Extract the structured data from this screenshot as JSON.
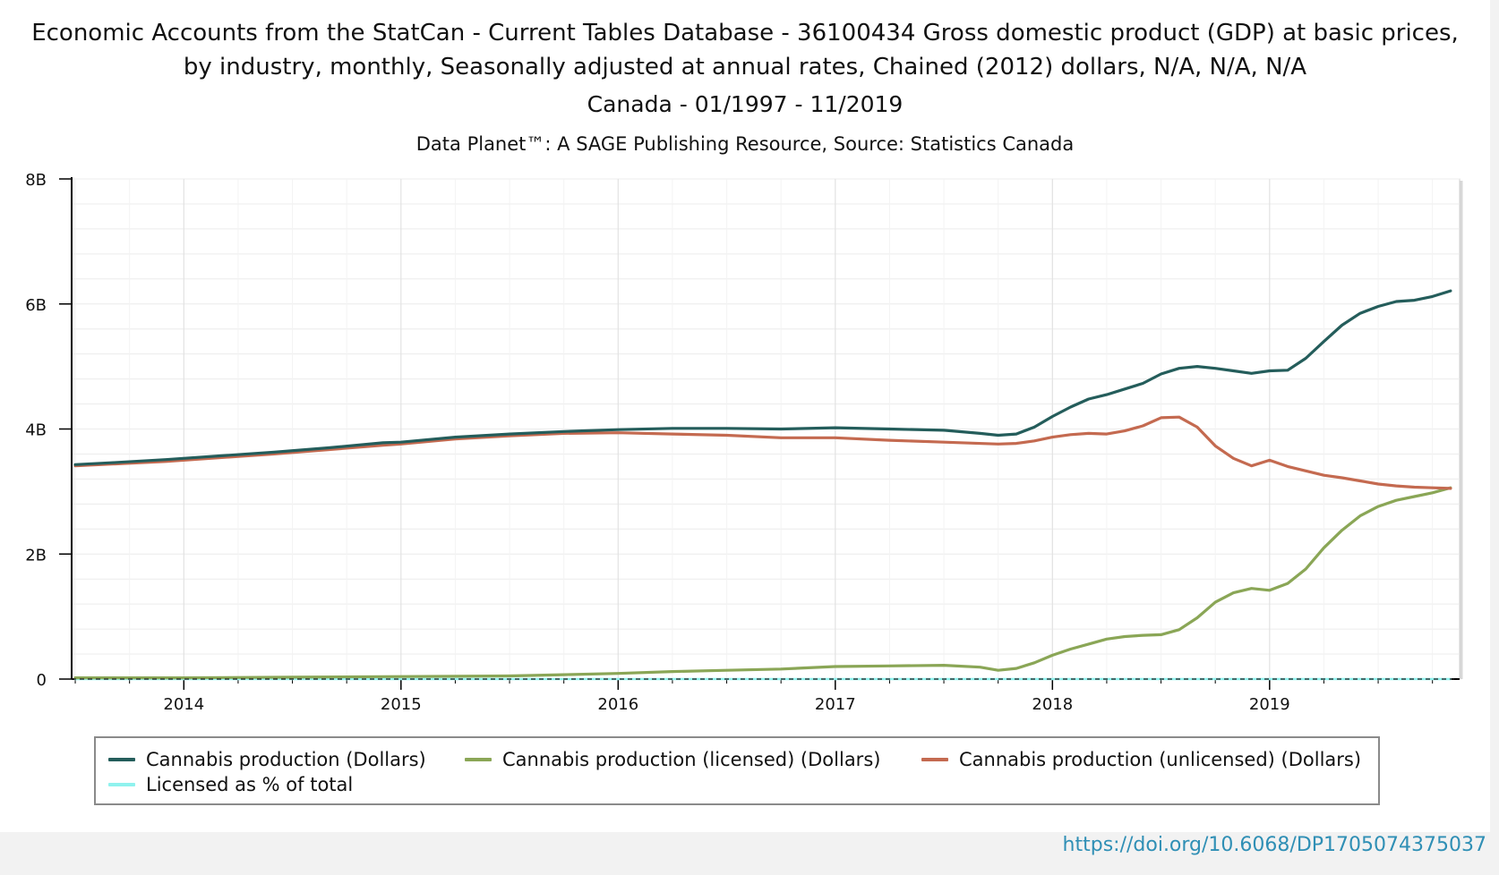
{
  "title_line1": "Economic Accounts from the StatCan - Current Tables Database - 36100434 Gross domestic product (GDP) at basic prices,",
  "title_line2": "by industry, monthly, Seasonally adjusted at annual rates, Chained (2012) dollars, N/A, N/A, N/A",
  "subtitle": "Canada - 01/1997 - 11/2019",
  "source": "Data Planet™: A SAGE Publishing Resource, Source: Statistics Canada",
  "doi_link": "https://doi.org/10.6068/DP1705074375037",
  "chart_data": {
    "type": "line",
    "x_start": "2013-07",
    "x_end": "2019-11",
    "x_tick_labels": [
      "2014",
      "2015",
      "2016",
      "2017",
      "2018",
      "2019"
    ],
    "y_tick_labels": [
      "0",
      "2B",
      "4B",
      "6B",
      "8B"
    ],
    "y_tick_values": [
      0,
      2,
      4,
      6,
      8
    ],
    "ylim": [
      0,
      8
    ],
    "y_unit": "billions of dollars",
    "grid": true,
    "legend_position": "bottom",
    "series": [
      {
        "name": "Cannabis production (Dollars)",
        "color": "#245d5b",
        "points": [
          [
            "2013-07",
            3.43
          ],
          [
            "2013-09",
            3.46
          ],
          [
            "2013-12",
            3.51
          ],
          [
            "2014-03",
            3.57
          ],
          [
            "2014-06",
            3.63
          ],
          [
            "2014-09",
            3.7
          ],
          [
            "2014-12",
            3.78
          ],
          [
            "2015-01",
            3.79
          ],
          [
            "2015-04",
            3.87
          ],
          [
            "2015-07",
            3.92
          ],
          [
            "2015-10",
            3.96
          ],
          [
            "2016-01",
            3.99
          ],
          [
            "2016-04",
            4.01
          ],
          [
            "2016-07",
            4.01
          ],
          [
            "2016-10",
            4.0
          ],
          [
            "2017-01",
            4.02
          ],
          [
            "2017-04",
            4.0
          ],
          [
            "2017-07",
            3.98
          ],
          [
            "2017-09",
            3.93
          ],
          [
            "2017-10",
            3.9
          ],
          [
            "2017-11",
            3.92
          ],
          [
            "2017-12",
            4.03
          ],
          [
            "2018-01",
            4.2
          ],
          [
            "2018-02",
            4.35
          ],
          [
            "2018-03",
            4.48
          ],
          [
            "2018-04",
            4.55
          ],
          [
            "2018-05",
            4.64
          ],
          [
            "2018-06",
            4.73
          ],
          [
            "2018-07",
            4.88
          ],
          [
            "2018-08",
            4.97
          ],
          [
            "2018-09",
            5.0
          ],
          [
            "2018-10",
            4.97
          ],
          [
            "2018-11",
            4.93
          ],
          [
            "2018-12",
            4.89
          ],
          [
            "2019-01",
            4.93
          ],
          [
            "2019-02",
            4.94
          ],
          [
            "2019-03",
            5.13
          ],
          [
            "2019-04",
            5.4
          ],
          [
            "2019-05",
            5.66
          ],
          [
            "2019-06",
            5.85
          ],
          [
            "2019-07",
            5.96
          ],
          [
            "2019-08",
            6.04
          ],
          [
            "2019-09",
            6.06
          ],
          [
            "2019-10",
            6.12
          ],
          [
            "2019-11",
            6.21
          ]
        ]
      },
      {
        "name": "Cannabis production (licensed) (Dollars)",
        "color": "#8aa656",
        "points": [
          [
            "2013-07",
            0.02
          ],
          [
            "2014-01",
            0.02
          ],
          [
            "2014-07",
            0.03
          ],
          [
            "2015-01",
            0.04
          ],
          [
            "2015-07",
            0.05
          ],
          [
            "2015-10",
            0.07
          ],
          [
            "2016-01",
            0.09
          ],
          [
            "2016-04",
            0.12
          ],
          [
            "2016-07",
            0.14
          ],
          [
            "2016-10",
            0.16
          ],
          [
            "2017-01",
            0.2
          ],
          [
            "2017-04",
            0.21
          ],
          [
            "2017-07",
            0.22
          ],
          [
            "2017-09",
            0.19
          ],
          [
            "2017-10",
            0.14
          ],
          [
            "2017-11",
            0.17
          ],
          [
            "2017-12",
            0.26
          ],
          [
            "2018-01",
            0.38
          ],
          [
            "2018-02",
            0.48
          ],
          [
            "2018-03",
            0.56
          ],
          [
            "2018-04",
            0.64
          ],
          [
            "2018-05",
            0.68
          ],
          [
            "2018-06",
            0.7
          ],
          [
            "2018-07",
            0.71
          ],
          [
            "2018-08",
            0.79
          ],
          [
            "2018-09",
            0.98
          ],
          [
            "2018-10",
            1.23
          ],
          [
            "2018-11",
            1.38
          ],
          [
            "2018-12",
            1.45
          ],
          [
            "2019-01",
            1.42
          ],
          [
            "2019-02",
            1.53
          ],
          [
            "2019-03",
            1.76
          ],
          [
            "2019-04",
            2.1
          ],
          [
            "2019-05",
            2.38
          ],
          [
            "2019-06",
            2.61
          ],
          [
            "2019-07",
            2.76
          ],
          [
            "2019-08",
            2.86
          ],
          [
            "2019-09",
            2.92
          ],
          [
            "2019-10",
            2.98
          ],
          [
            "2019-11",
            3.06
          ]
        ]
      },
      {
        "name": "Cannabis production (unlicensed) (Dollars)",
        "color": "#c46a50",
        "points": [
          [
            "2013-07",
            3.41
          ],
          [
            "2013-12",
            3.48
          ],
          [
            "2014-06",
            3.6
          ],
          [
            "2014-12",
            3.74
          ],
          [
            "2015-01",
            3.76
          ],
          [
            "2015-04",
            3.84
          ],
          [
            "2015-07",
            3.89
          ],
          [
            "2015-10",
            3.93
          ],
          [
            "2016-01",
            3.94
          ],
          [
            "2016-04",
            3.92
          ],
          [
            "2016-07",
            3.9
          ],
          [
            "2016-10",
            3.86
          ],
          [
            "2017-01",
            3.86
          ],
          [
            "2017-04",
            3.82
          ],
          [
            "2017-07",
            3.79
          ],
          [
            "2017-10",
            3.76
          ],
          [
            "2017-11",
            3.77
          ],
          [
            "2017-12",
            3.81
          ],
          [
            "2018-01",
            3.87
          ],
          [
            "2018-02",
            3.91
          ],
          [
            "2018-03",
            3.93
          ],
          [
            "2018-04",
            3.92
          ],
          [
            "2018-05",
            3.97
          ],
          [
            "2018-06",
            4.05
          ],
          [
            "2018-07",
            4.18
          ],
          [
            "2018-08",
            4.19
          ],
          [
            "2018-09",
            4.03
          ],
          [
            "2018-10",
            3.73
          ],
          [
            "2018-11",
            3.53
          ],
          [
            "2018-12",
            3.41
          ],
          [
            "2019-01",
            3.5
          ],
          [
            "2019-02",
            3.4
          ],
          [
            "2019-03",
            3.33
          ],
          [
            "2019-04",
            3.26
          ],
          [
            "2019-05",
            3.22
          ],
          [
            "2019-06",
            3.17
          ],
          [
            "2019-07",
            3.12
          ],
          [
            "2019-08",
            3.09
          ],
          [
            "2019-09",
            3.07
          ],
          [
            "2019-10",
            3.06
          ],
          [
            "2019-11",
            3.05
          ]
        ]
      },
      {
        "name": "Licensed as % of total",
        "color": "#8ff2ee",
        "points": [
          [
            "2013-07",
            0.0
          ],
          [
            "2019-11",
            0.0
          ]
        ]
      }
    ]
  }
}
